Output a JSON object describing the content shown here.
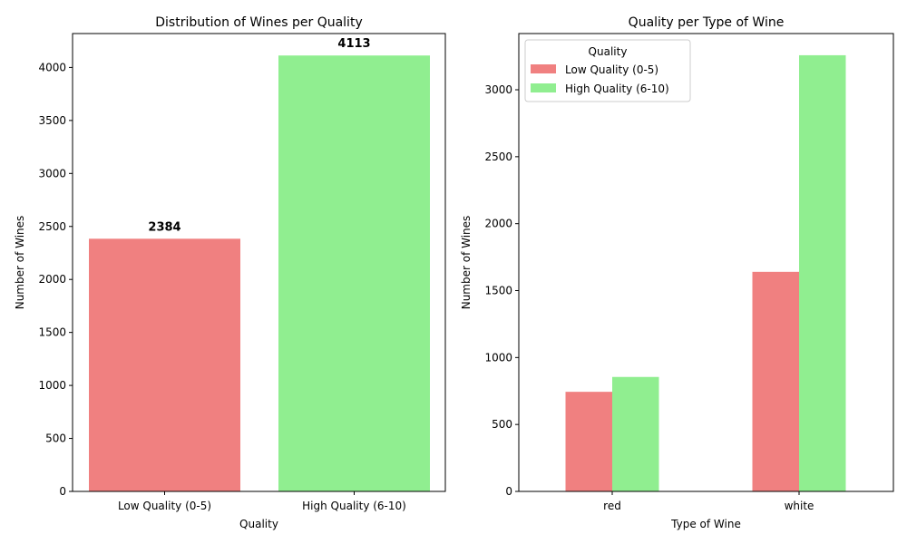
{
  "chart_data": [
    {
      "type": "bar",
      "title": "Distribution of Wines per Quality",
      "xlabel": "Quality",
      "ylabel": "Number of Wines",
      "categories": [
        "Low Quality (0-5)",
        "High Quality (6-10)"
      ],
      "values": [
        2384,
        4113
      ],
      "value_labels": [
        "2384",
        "4113"
      ],
      "colors": [
        "#f08080",
        "#90ee90"
      ],
      "ylim": [
        0,
        4320
      ],
      "yticks": [
        0,
        500,
        1000,
        1500,
        2000,
        2500,
        3000,
        3500,
        4000
      ],
      "grid": false
    },
    {
      "type": "bar",
      "title": "Quality per Type of Wine",
      "xlabel": "Type of Wine",
      "ylabel": "Number of Wines",
      "categories": [
        "red",
        "white"
      ],
      "series": [
        {
          "name": "Low Quality (0-5)",
          "values": [
            744,
            1640
          ],
          "color": "#f08080"
        },
        {
          "name": "High Quality (6-10)",
          "values": [
            855,
            3258
          ],
          "color": "#90ee90"
        }
      ],
      "ylim": [
        0,
        3420
      ],
      "yticks": [
        0,
        500,
        1000,
        1500,
        2000,
        2500,
        3000
      ],
      "legend": {
        "title": "Quality",
        "placement": "top-left"
      },
      "grid": false
    }
  ]
}
